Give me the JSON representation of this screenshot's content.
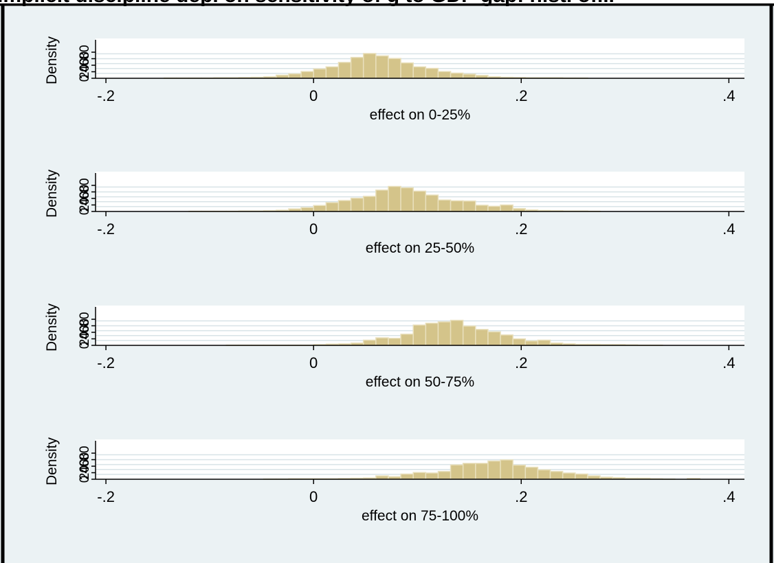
{
  "title": "Implicit discipline dep. on sensitivity of g to GDP gap: hist. of...",
  "colors": {
    "background": "#ebf2f4",
    "plot_area": "#ffffff",
    "bar_fill": "#d4c48a",
    "bar_edge": "#e9e0bd",
    "grid": "#d8e3e7",
    "axis": "#000000",
    "border": "#000000"
  },
  "chart_data": [
    {
      "type": "bar",
      "xlabel": "effect on 0-25%",
      "ylabel": "Density",
      "yticklabels": [
        "0",
        "20",
        "40",
        "60",
        "80"
      ],
      "xticklabels": [
        "-.2",
        "0",
        ".2",
        ".4"
      ],
      "xticks": [
        -0.2,
        0,
        0.2,
        0.4
      ],
      "xlim": [
        -0.21,
        0.415
      ],
      "ylim": [
        0,
        100
      ],
      "grid": true,
      "bin_width": 0.012,
      "bin_starts": [
        -0.144,
        -0.132,
        -0.12,
        -0.108,
        -0.096,
        -0.084,
        -0.072,
        -0.06,
        -0.048,
        -0.036,
        -0.024,
        -0.012,
        0.0,
        0.012,
        0.024,
        0.036,
        0.048,
        0.06,
        0.072,
        0.084,
        0.096,
        0.108,
        0.12,
        0.132,
        0.144,
        0.156,
        0.168,
        0.18,
        0.192,
        0.204,
        0.216,
        0.228,
        0.24,
        0.252
      ],
      "values": [
        1,
        1,
        1,
        1,
        2,
        2,
        3,
        4,
        6,
        12,
        17,
        26,
        36,
        44,
        61,
        80,
        95,
        86,
        76,
        59,
        44,
        38,
        26,
        20,
        16,
        11,
        6,
        4,
        3,
        2,
        2,
        2,
        1,
        1
      ]
    },
    {
      "type": "bar",
      "xlabel": "effect on 25-50%",
      "ylabel": "Density",
      "yticklabels": [
        "0",
        "20",
        "40",
        "60",
        "80"
      ],
      "xticklabels": [
        "-.2",
        "0",
        ".2",
        ".4"
      ],
      "xticks": [
        -0.2,
        0,
        0.2,
        0.4
      ],
      "xlim": [
        -0.21,
        0.415
      ],
      "ylim": [
        0,
        100
      ],
      "grid": true,
      "bin_width": 0.012,
      "bin_starts": [
        -0.12,
        -0.108,
        -0.096,
        -0.084,
        -0.072,
        -0.06,
        -0.048,
        -0.036,
        -0.024,
        -0.012,
        0.0,
        0.012,
        0.024,
        0.036,
        0.048,
        0.06,
        0.072,
        0.084,
        0.096,
        0.108,
        0.12,
        0.132,
        0.144,
        0.156,
        0.168,
        0.18,
        0.192,
        0.204,
        0.216,
        0.228,
        0.24,
        0.252,
        0.264
      ],
      "values": [
        1,
        1,
        1,
        1,
        2,
        2,
        3,
        5,
        10,
        15,
        23,
        34,
        42,
        51,
        58,
        82,
        96,
        91,
        78,
        63,
        44,
        41,
        40,
        24,
        20,
        25,
        11,
        6,
        4,
        3,
        2,
        2,
        1
      ]
    },
    {
      "type": "bar",
      "xlabel": "effect on 50-75%",
      "ylabel": "Density",
      "yticklabels": [
        "0",
        "20",
        "40",
        "60",
        "80"
      ],
      "xticklabels": [
        "-.2",
        "0",
        ".2",
        ".4"
      ],
      "xticks": [
        -0.2,
        0,
        0.2,
        0.4
      ],
      "xlim": [
        -0.21,
        0.415
      ],
      "ylim": [
        0,
        100
      ],
      "grid": true,
      "bin_width": 0.012,
      "bin_starts": [
        -0.084,
        -0.072,
        -0.06,
        -0.048,
        -0.036,
        -0.024,
        -0.012,
        0.0,
        0.012,
        0.024,
        0.036,
        0.048,
        0.06,
        0.072,
        0.084,
        0.096,
        0.108,
        0.12,
        0.132,
        0.144,
        0.156,
        0.168,
        0.18,
        0.192,
        0.204,
        0.216,
        0.228,
        0.24,
        0.252,
        0.264,
        0.276,
        0.288,
        0.3,
        0.312,
        0.324
      ],
      "values": [
        1,
        1,
        1,
        1,
        1,
        1,
        1,
        3,
        5,
        6,
        9,
        20,
        29,
        27,
        43,
        78,
        85,
        90,
        96,
        74,
        61,
        52,
        40,
        25,
        17,
        20,
        9,
        6,
        4,
        4,
        3,
        3,
        2,
        1,
        1
      ]
    },
    {
      "type": "bar",
      "xlabel": "effect on 75-100%",
      "ylabel": "Density",
      "yticklabels": [
        "0",
        "20",
        "40",
        "60",
        "80"
      ],
      "xticklabels": [
        "-.2",
        "0",
        ".2",
        ".4"
      ],
      "xticks": [
        -0.2,
        0,
        0.2,
        0.4
      ],
      "xlim": [
        -0.21,
        0.415
      ],
      "ylim": [
        0,
        100
      ],
      "grid": true,
      "bin_width": 0.012,
      "bin_starts": [
        -0.048,
        -0.036,
        -0.024,
        -0.012,
        0.0,
        0.012,
        0.024,
        0.036,
        0.048,
        0.06,
        0.072,
        0.084,
        0.096,
        0.108,
        0.12,
        0.132,
        0.144,
        0.156,
        0.168,
        0.18,
        0.192,
        0.204,
        0.216,
        0.228,
        0.24,
        0.252,
        0.264,
        0.276,
        0.288,
        0.3,
        0.312,
        0.324,
        0.336,
        0.36
      ],
      "values": [
        1,
        1,
        2,
        2,
        2,
        2,
        3,
        4,
        5,
        13,
        10,
        20,
        26,
        24,
        30,
        55,
        61,
        61,
        70,
        74,
        54,
        46,
        36,
        30,
        24,
        20,
        13,
        8,
        6,
        4,
        4,
        2,
        1,
        3
      ]
    }
  ]
}
